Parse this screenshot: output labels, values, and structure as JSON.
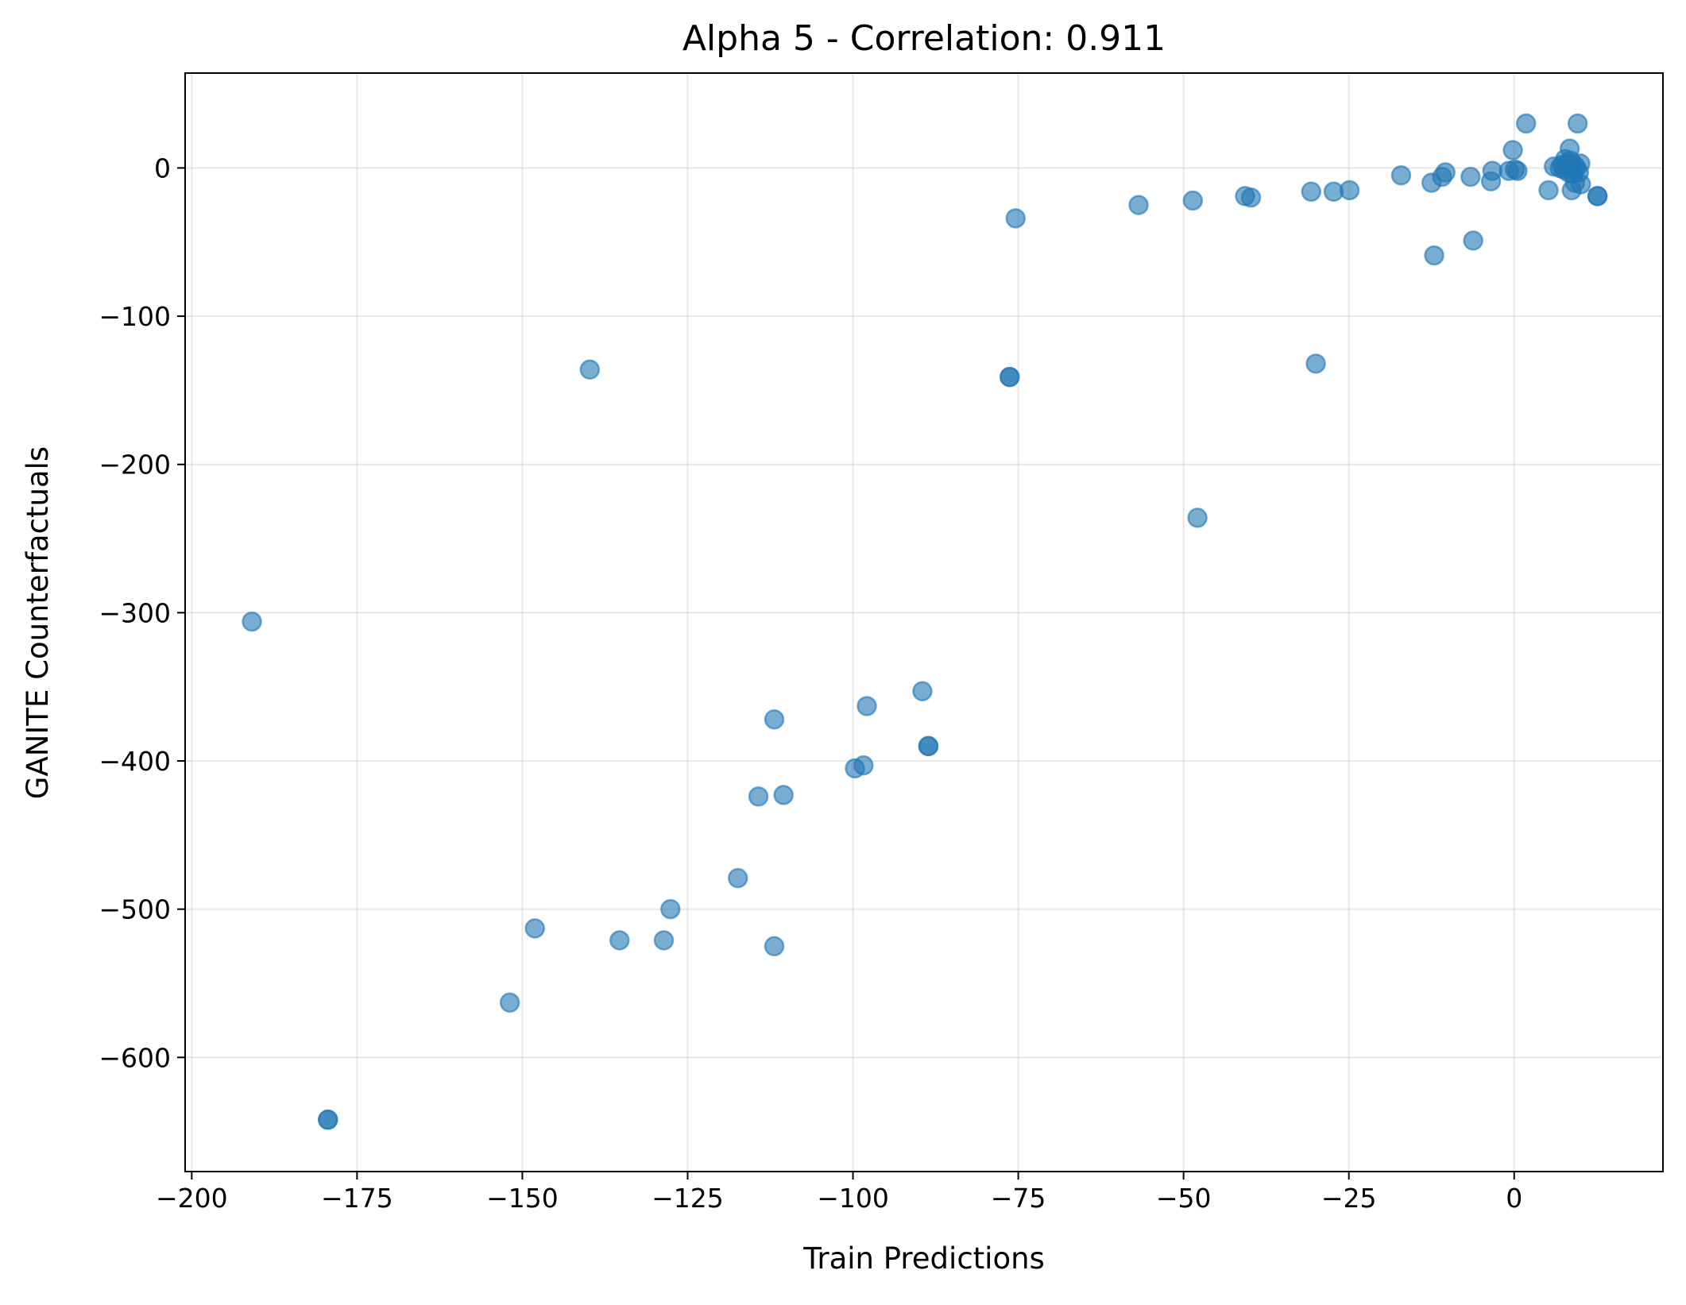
{
  "chart_data": {
    "type": "scatter",
    "title": "Alpha 5 - Correlation: 0.911",
    "xlabel": "Train Predictions",
    "ylabel": "GANITE Counterfactuals",
    "xlim": [
      -201,
      22.5
    ],
    "ylim": [
      -677,
      64
    ],
    "x_ticks": [
      -200,
      -175,
      -150,
      -125,
      -100,
      -75,
      -50,
      -25,
      0
    ],
    "x_tick_labels": [
      "−200",
      "−175",
      "−150",
      "−125",
      "−100",
      "−75",
      "−50",
      "−25",
      "0"
    ],
    "y_ticks": [
      0,
      -100,
      -200,
      -300,
      -400,
      -500,
      -600
    ],
    "y_tick_labels": [
      "0",
      "−100",
      "−200",
      "−300",
      "−400",
      "−500",
      "−600"
    ],
    "grid": true,
    "legend": "none",
    "marker_color": "#1f77b4",
    "marker_alpha": 0.6,
    "points": [
      {
        "x": -190.9,
        "y": -306
      },
      {
        "x": -179.4,
        "y": -642
      },
      {
        "x": -179.4,
        "y": -642
      },
      {
        "x": -151.9,
        "y": -563
      },
      {
        "x": -148.1,
        "y": -513
      },
      {
        "x": -139.8,
        "y": -136
      },
      {
        "x": -135.3,
        "y": -521
      },
      {
        "x": -128.6,
        "y": -521
      },
      {
        "x": -127.6,
        "y": -500
      },
      {
        "x": -117.4,
        "y": -479
      },
      {
        "x": -114.3,
        "y": -424
      },
      {
        "x": -111.9,
        "y": -372
      },
      {
        "x": -111.9,
        "y": -525
      },
      {
        "x": -110.5,
        "y": -423
      },
      {
        "x": -99.7,
        "y": -405
      },
      {
        "x": -98.4,
        "y": -403
      },
      {
        "x": -97.9,
        "y": -363
      },
      {
        "x": -89.5,
        "y": -353
      },
      {
        "x": -88.6,
        "y": -390
      },
      {
        "x": -88.6,
        "y": -390
      },
      {
        "x": -76.3,
        "y": -141
      },
      {
        "x": -76.3,
        "y": -141
      },
      {
        "x": -75.4,
        "y": -34
      },
      {
        "x": -56.8,
        "y": -25
      },
      {
        "x": -48.6,
        "y": -22
      },
      {
        "x": -47.9,
        "y": -236
      },
      {
        "x": -40.7,
        "y": -19
      },
      {
        "x": -39.8,
        "y": -20
      },
      {
        "x": -30.7,
        "y": -16
      },
      {
        "x": -30.0,
        "y": -132
      },
      {
        "x": -27.3,
        "y": -16
      },
      {
        "x": -24.9,
        "y": -15
      },
      {
        "x": -17.1,
        "y": -5
      },
      {
        "x": -12.5,
        "y": -10
      },
      {
        "x": -12.1,
        "y": -59
      },
      {
        "x": -10.9,
        "y": -6
      },
      {
        "x": -10.4,
        "y": -3
      },
      {
        "x": -6.6,
        "y": -6
      },
      {
        "x": -6.2,
        "y": -49
      },
      {
        "x": -3.5,
        "y": -9
      },
      {
        "x": -3.3,
        "y": -2
      },
      {
        "x": -0.8,
        "y": -2
      },
      {
        "x": -0.2,
        "y": 12
      },
      {
        "x": 0.1,
        "y": -1
      },
      {
        "x": 0.5,
        "y": -2
      },
      {
        "x": 1.8,
        "y": 30
      },
      {
        "x": 5.2,
        "y": -15
      },
      {
        "x": 6.0,
        "y": 1
      },
      {
        "x": 6.9,
        "y": 0
      },
      {
        "x": 7.2,
        "y": 2
      },
      {
        "x": 7.5,
        "y": -1
      },
      {
        "x": 7.7,
        "y": 6
      },
      {
        "x": 8.0,
        "y": 3
      },
      {
        "x": 8.2,
        "y": -3
      },
      {
        "x": 8.4,
        "y": 13
      },
      {
        "x": 8.5,
        "y": 5
      },
      {
        "x": 8.6,
        "y": 1
      },
      {
        "x": 8.7,
        "y": -15
      },
      {
        "x": 8.9,
        "y": -4
      },
      {
        "x": 9.1,
        "y": 2
      },
      {
        "x": 9.2,
        "y": -10
      },
      {
        "x": 9.4,
        "y": 0
      },
      {
        "x": 9.6,
        "y": 30
      },
      {
        "x": 9.8,
        "y": -3
      },
      {
        "x": 10.0,
        "y": 3
      },
      {
        "x": 10.1,
        "y": -11
      },
      {
        "x": 12.6,
        "y": -19
      },
      {
        "x": 12.6,
        "y": -19
      }
    ]
  }
}
